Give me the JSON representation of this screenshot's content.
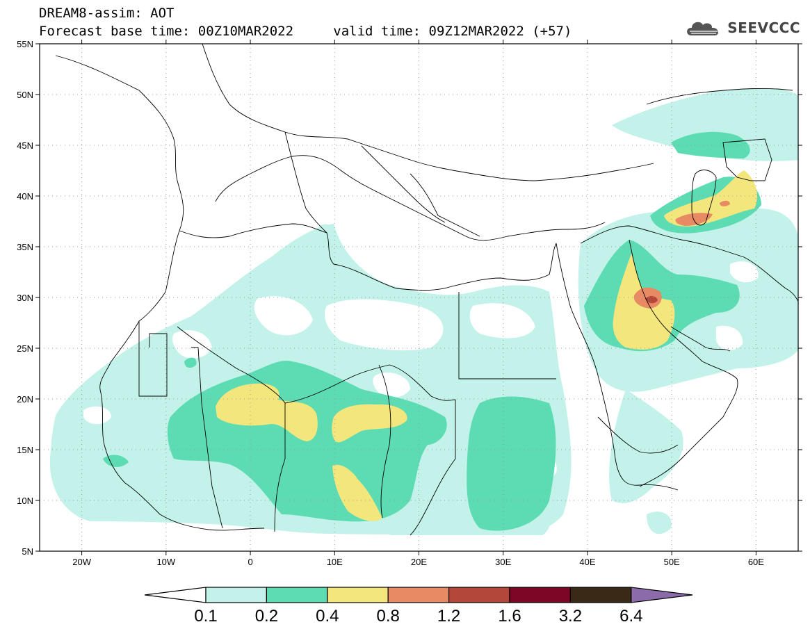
{
  "header": {
    "line1": "DREAM8-assim: AOT",
    "line2_base": "Forecast base time: 00Z10MAR2022",
    "line2_valid": "valid time: 09Z12MAR2022 (+57)"
  },
  "logo": {
    "text": "SEEVCCC",
    "icon": "cloud-icon"
  },
  "map": {
    "lon_range": [
      -25,
      65
    ],
    "lat_range": [
      5,
      55
    ],
    "lat_ticks": [
      {
        "value": 55,
        "label": "55N"
      },
      {
        "value": 50,
        "label": "50N"
      },
      {
        "value": 45,
        "label": "45N"
      },
      {
        "value": 40,
        "label": "40N"
      },
      {
        "value": 35,
        "label": "35N"
      },
      {
        "value": 30,
        "label": "30N"
      },
      {
        "value": 25,
        "label": "25N"
      },
      {
        "value": 20,
        "label": "20N"
      },
      {
        "value": 15,
        "label": "15N"
      },
      {
        "value": 10,
        "label": "10N"
      },
      {
        "value": 5,
        "label": "5N"
      }
    ],
    "lon_ticks": [
      {
        "value": -20,
        "label": "20W"
      },
      {
        "value": -10,
        "label": "10W"
      },
      {
        "value": 0,
        "label": "0"
      },
      {
        "value": 10,
        "label": "10E"
      },
      {
        "value": 20,
        "label": "20E"
      },
      {
        "value": 30,
        "label": "30E"
      },
      {
        "value": 40,
        "label": "40E"
      },
      {
        "value": 50,
        "label": "50E"
      },
      {
        "value": 60,
        "label": "60E"
      }
    ]
  },
  "colorbar": {
    "labels": [
      "0.1",
      "0.2",
      "0.4",
      "0.8",
      "1.2",
      "1.6",
      "3.2",
      "6.4"
    ],
    "colors": [
      "#c2f2ea",
      "#5ddcb3",
      "#f3e67c",
      "#e88a63",
      "#b3473a",
      "#7d0526",
      "#3a2916",
      "#8c6bab"
    ],
    "under_color": "#ffffff",
    "over_color": "#8c6bab"
  }
}
